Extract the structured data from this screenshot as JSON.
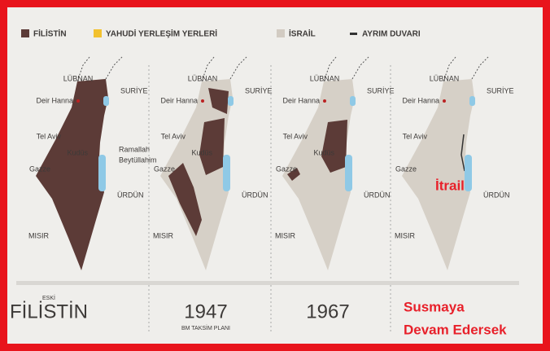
{
  "legend": [
    {
      "label": "FİLİSTİN"
    },
    {
      "label": "YAHUDİ YERLEŞİM YERLERİ"
    },
    {
      "label": "İSRAİL"
    },
    {
      "label": "AYRIM DUVARI"
    }
  ],
  "panels": [
    {
      "labels": {
        "lubnan": "LÜBNAN",
        "suriye": "SURİYE",
        "deir_hanna": "Deir Hanna",
        "tel_aviv": "Tel Aviv",
        "kudus": "Kudüs",
        "gazze": "Gazze",
        "urdun": "ÜRDÜN",
        "misir": "MISIR",
        "ramallah": "Ramallah",
        "beytullahim": "Beytüllahim"
      },
      "caption_top": "ESKİ",
      "caption": "FİLİSTİN"
    },
    {
      "labels": {
        "lubnan": "LÜBNAN",
        "suriye": "SURİYE",
        "deir_hanna": "Deir Hanna",
        "tel_aviv": "Tel Aviv",
        "kudus": "Kudüs",
        "gazze": "Gazze",
        "urdun": "ÜRDÜN",
        "misir": "MISIR"
      },
      "caption": "1947",
      "caption_sub": "BM TAKSİM PLANI"
    },
    {
      "labels": {
        "lubnan": "LÜBNAN",
        "suriye": "SURİYE",
        "deir_hanna": "Deir Hanna",
        "tel_aviv": "Tel Aviv",
        "kudus": "Kudüs",
        "gazze": "Gazze",
        "urdun": "ÜRDÜN",
        "misir": "MISIR"
      },
      "caption": "1967"
    },
    {
      "labels": {
        "lubnan": "LÜBNAN",
        "suriye": "SURİYE",
        "deir_hanna": "Deir Hanna",
        "tel_aviv": "Tel Aviv",
        "gazze": "Gazze",
        "urdun": "ÜRDÜN",
        "misir": "MISIR",
        "itrail": "İtrail"
      },
      "caption_lines": [
        "Susmaya",
        "Devam Edersek"
      ]
    }
  ]
}
